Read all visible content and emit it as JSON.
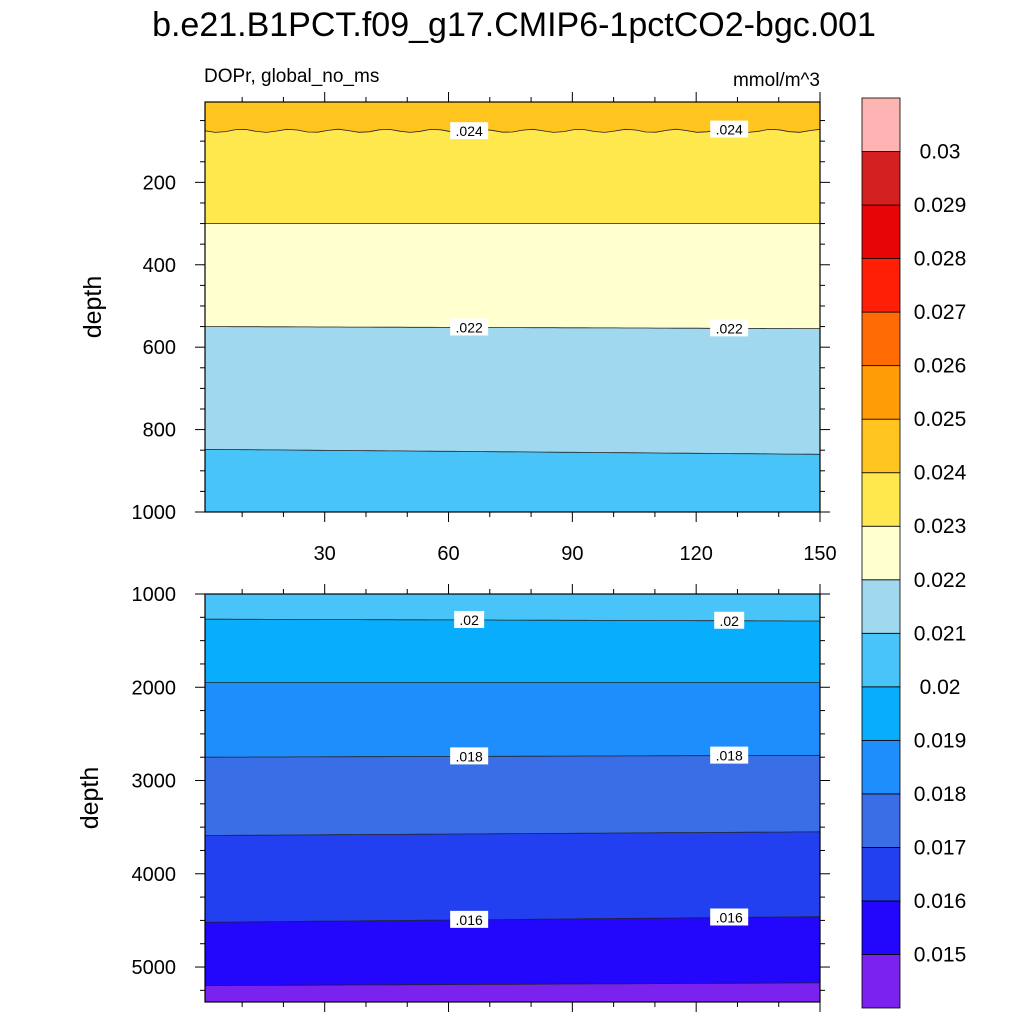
{
  "chart_data": [
    {
      "type": "filled-contour",
      "title": "b.e21.B1PCT.f09_g17.CMIP6-1pctCO2-bgc.001",
      "left_subtitle": "DOPr, global_no_ms",
      "right_subtitle": "mmol/m^3",
      "ylabel": "depth",
      "xlim": [
        1,
        150
      ],
      "ylim": [
        1000,
        5
      ],
      "x_ticks": [
        "30",
        "60",
        "90",
        "120",
        "150"
      ],
      "y_ticks": [
        "200",
        "400",
        "600",
        "800",
        "1000"
      ],
      "contour_lines": [
        {
          "level": 0.024,
          "depth_at_start": 75,
          "depth_at_end": 75,
          "labels": [
            ".024",
            ".024"
          ]
        },
        {
          "level": 0.023,
          "depth_at_start": 300,
          "depth_at_end": 300,
          "labels": []
        },
        {
          "level": 0.022,
          "depth_at_start": 550,
          "depth_at_end": 555,
          "labels": [
            ".022",
            ".022"
          ]
        },
        {
          "level": 0.021,
          "depth_at_start": 848,
          "depth_at_end": 860,
          "labels": []
        }
      ],
      "bands": [
        {
          "range": "0.024-0.025",
          "from_depth": 5,
          "to_depth": 75
        },
        {
          "range": "0.023-0.024",
          "from_depth": 75,
          "to_depth": 300
        },
        {
          "range": "0.022-0.023",
          "from_depth": 300,
          "to_depth": 552
        },
        {
          "range": "0.021-0.022",
          "from_depth": 552,
          "to_depth": 854
        },
        {
          "range": "0.02-0.021",
          "from_depth": 854,
          "to_depth": 1000
        }
      ]
    },
    {
      "type": "filled-contour",
      "ylabel": "depth",
      "xlim": [
        1,
        150
      ],
      "ylim": [
        5375,
        1000
      ],
      "y_ticks": [
        "1000",
        "2000",
        "3000",
        "4000",
        "5000"
      ],
      "contour_lines": [
        {
          "level": 0.02,
          "depth_at_start": 1270,
          "depth_at_end": 1290,
          "labels": [
            ".02",
            ".02"
          ]
        },
        {
          "level": 0.019,
          "depth_at_start": 1950,
          "depth_at_end": 1950,
          "labels": []
        },
        {
          "level": 0.018,
          "depth_at_start": 2750,
          "depth_at_end": 2730,
          "labels": [
            ".018",
            ".018"
          ]
        },
        {
          "level": 0.017,
          "depth_at_start": 3590,
          "depth_at_end": 3550,
          "labels": []
        },
        {
          "level": 0.016,
          "depth_at_start": 4520,
          "depth_at_end": 4460,
          "labels": [
            ".016",
            ".016"
          ]
        },
        {
          "level": 0.015,
          "depth_at_start": 5200,
          "depth_at_end": 5170,
          "labels": []
        }
      ]
    }
  ],
  "colorbar": {
    "levels": [
      "0.015",
      "0.016",
      "0.017",
      "0.018",
      "0.019",
      "0.02",
      "0.021",
      "0.022",
      "0.023",
      "0.024",
      "0.025",
      "0.026",
      "0.027",
      "0.028",
      "0.029",
      "0.03"
    ],
    "colors": [
      "#7B22EE",
      "#2306FC",
      "#2340F0",
      "#3A6EE6",
      "#1E8EFC",
      "#08AEFC",
      "#48C4F8",
      "#A0D8F0",
      "#FFFFD0",
      "#FFE84E",
      "#FFC41E",
      "#FF9C06",
      "#FF6C06",
      "#FF1E06",
      "#E80506",
      "#D42020",
      "#FFB4B4"
    ]
  },
  "colors": {
    "line": "#222222",
    "frame": "#000000"
  }
}
